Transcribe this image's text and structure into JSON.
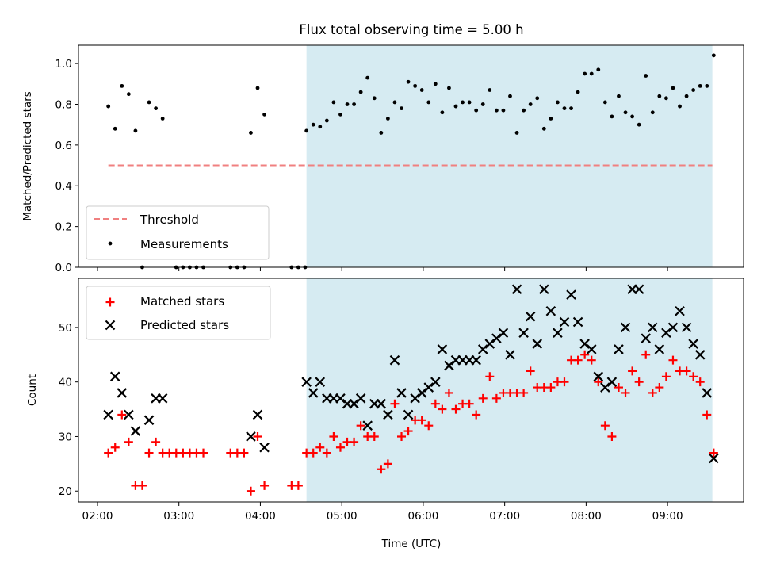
{
  "title": "Flux total observing time = 5.00 h",
  "colors": {
    "shade": "#add8e6",
    "threshold": "#f08080",
    "measurements": "#000000",
    "matched": "#ff0000",
    "predicted": "#000000",
    "axes": "#000000"
  },
  "chart_data": [
    {
      "type": "scatter",
      "ylabel": "Matched/Predicted stars",
      "xlabel": "",
      "ylim": [
        0.0,
        1.09
      ],
      "xlim": [
        "01:46",
        "09:56"
      ],
      "yticks": [
        "0.0",
        "0.2",
        "0.4",
        "0.6",
        "0.8",
        "1.0"
      ],
      "grid": false,
      "legend": {
        "position": "lower-left",
        "entries": [
          "Threshold",
          "Measurements"
        ]
      },
      "shaded_region": {
        "x_start": "04:34",
        "x_end": "09:33"
      },
      "threshold": {
        "name": "Threshold",
        "y": 0.5,
        "x_start": "02:08",
        "x_end": "09:33",
        "style": "dashed"
      },
      "series": [
        {
          "name": "Measurements",
          "marker": "dot",
          "points": [
            [
              "02:08",
              0.79
            ],
            [
              "02:13",
              0.68
            ],
            [
              "02:18",
              0.89
            ],
            [
              "02:23",
              0.85
            ],
            [
              "02:28",
              0.67
            ],
            [
              "02:33",
              0.0
            ],
            [
              "02:38",
              0.81
            ],
            [
              "02:43",
              0.78
            ],
            [
              "02:48",
              0.73
            ],
            [
              "02:58",
              0.0
            ],
            [
              "03:03",
              0.0
            ],
            [
              "03:08",
              0.0
            ],
            [
              "03:13",
              0.0
            ],
            [
              "03:18",
              0.0
            ],
            [
              "03:38",
              0.0
            ],
            [
              "03:43",
              0.0
            ],
            [
              "03:48",
              0.0
            ],
            [
              "03:53",
              0.66
            ],
            [
              "03:58",
              0.88
            ],
            [
              "04:03",
              0.75
            ],
            [
              "04:23",
              0.0
            ],
            [
              "04:28",
              0.0
            ],
            [
              "04:33",
              0.0
            ],
            [
              "04:34",
              0.67
            ],
            [
              "04:39",
              0.7
            ],
            [
              "04:44",
              0.69
            ],
            [
              "04:49",
              0.72
            ],
            [
              "04:54",
              0.81
            ],
            [
              "04:59",
              0.75
            ],
            [
              "05:04",
              0.8
            ],
            [
              "05:09",
              0.8
            ],
            [
              "05:14",
              0.86
            ],
            [
              "05:19",
              0.93
            ],
            [
              "05:24",
              0.83
            ],
            [
              "05:29",
              0.66
            ],
            [
              "05:34",
              0.73
            ],
            [
              "05:39",
              0.81
            ],
            [
              "05:44",
              0.78
            ],
            [
              "05:49",
              0.91
            ],
            [
              "05:54",
              0.89
            ],
            [
              "05:59",
              0.87
            ],
            [
              "06:04",
              0.81
            ],
            [
              "06:09",
              0.9
            ],
            [
              "06:14",
              0.76
            ],
            [
              "06:19",
              0.88
            ],
            [
              "06:24",
              0.79
            ],
            [
              "06:29",
              0.81
            ],
            [
              "06:34",
              0.81
            ],
            [
              "06:39",
              0.77
            ],
            [
              "06:44",
              0.8
            ],
            [
              "06:49",
              0.87
            ],
            [
              "06:54",
              0.77
            ],
            [
              "06:59",
              0.77
            ],
            [
              "07:04",
              0.84
            ],
            [
              "07:09",
              0.66
            ],
            [
              "07:14",
              0.77
            ],
            [
              "07:19",
              0.8
            ],
            [
              "07:24",
              0.83
            ],
            [
              "07:29",
              0.68
            ],
            [
              "07:34",
              0.73
            ],
            [
              "07:39",
              0.81
            ],
            [
              "07:44",
              0.78
            ],
            [
              "07:49",
              0.78
            ],
            [
              "07:54",
              0.86
            ],
            [
              "07:59",
              0.95
            ],
            [
              "08:04",
              0.95
            ],
            [
              "08:09",
              0.97
            ],
            [
              "08:14",
              0.81
            ],
            [
              "08:19",
              0.74
            ],
            [
              "08:24",
              0.84
            ],
            [
              "08:29",
              0.76
            ],
            [
              "08:34",
              0.74
            ],
            [
              "08:39",
              0.7
            ],
            [
              "08:44",
              0.94
            ],
            [
              "08:49",
              0.76
            ],
            [
              "08:54",
              0.84
            ],
            [
              "08:59",
              0.83
            ],
            [
              "09:04",
              0.88
            ],
            [
              "09:09",
              0.79
            ],
            [
              "09:14",
              0.84
            ],
            [
              "09:19",
              0.87
            ],
            [
              "09:24",
              0.89
            ],
            [
              "09:29",
              0.89
            ],
            [
              "09:34",
              1.04
            ]
          ]
        }
      ]
    },
    {
      "type": "scatter",
      "ylabel": "Count",
      "xlabel": "Time (UTC)",
      "ylim": [
        18,
        59
      ],
      "xlim": [
        "01:46",
        "09:56"
      ],
      "yticks": [
        "20",
        "30",
        "40",
        "50"
      ],
      "xticks": [
        "02:00",
        "03:00",
        "04:00",
        "05:00",
        "06:00",
        "07:00",
        "08:00",
        "09:00"
      ],
      "grid": false,
      "legend": {
        "position": "upper-left",
        "entries": [
          "Matched stars",
          "Predicted stars"
        ]
      },
      "shaded_region": {
        "x_start": "04:34",
        "x_end": "09:33"
      },
      "series": [
        {
          "name": "Matched stars",
          "marker": "plus",
          "points": [
            [
              "02:08",
              27
            ],
            [
              "02:13",
              28
            ],
            [
              "02:18",
              34
            ],
            [
              "02:23",
              29
            ],
            [
              "02:28",
              21
            ],
            [
              "02:33",
              21
            ],
            [
              "02:38",
              27
            ],
            [
              "02:43",
              29
            ],
            [
              "02:48",
              27
            ],
            [
              "02:53",
              27
            ],
            [
              "02:58",
              27
            ],
            [
              "03:03",
              27
            ],
            [
              "03:08",
              27
            ],
            [
              "03:13",
              27
            ],
            [
              "03:18",
              27
            ],
            [
              "03:38",
              27
            ],
            [
              "03:43",
              27
            ],
            [
              "03:48",
              27
            ],
            [
              "03:53",
              20
            ],
            [
              "03:58",
              30
            ],
            [
              "04:03",
              21
            ],
            [
              "04:23",
              21
            ],
            [
              "04:28",
              21
            ],
            [
              "04:34",
              27
            ],
            [
              "04:39",
              27
            ],
            [
              "04:44",
              28
            ],
            [
              "04:49",
              27
            ],
            [
              "04:54",
              30
            ],
            [
              "04:59",
              28
            ],
            [
              "05:04",
              29
            ],
            [
              "05:09",
              29
            ],
            [
              "05:14",
              32
            ],
            [
              "05:19",
              30
            ],
            [
              "05:24",
              30
            ],
            [
              "05:29",
              24
            ],
            [
              "05:34",
              25
            ],
            [
              "05:39",
              36
            ],
            [
              "05:44",
              30
            ],
            [
              "05:49",
              31
            ],
            [
              "05:54",
              33
            ],
            [
              "05:59",
              33
            ],
            [
              "06:04",
              32
            ],
            [
              "06:09",
              36
            ],
            [
              "06:14",
              35
            ],
            [
              "06:19",
              38
            ],
            [
              "06:24",
              35
            ],
            [
              "06:29",
              36
            ],
            [
              "06:34",
              36
            ],
            [
              "06:39",
              34
            ],
            [
              "06:44",
              37
            ],
            [
              "06:49",
              41
            ],
            [
              "06:54",
              37
            ],
            [
              "06:59",
              38
            ],
            [
              "07:04",
              38
            ],
            [
              "07:09",
              38
            ],
            [
              "07:14",
              38
            ],
            [
              "07:19",
              42
            ],
            [
              "07:24",
              39
            ],
            [
              "07:29",
              39
            ],
            [
              "07:34",
              39
            ],
            [
              "07:39",
              40
            ],
            [
              "07:44",
              40
            ],
            [
              "07:49",
              44
            ],
            [
              "07:54",
              44
            ],
            [
              "07:59",
              45
            ],
            [
              "08:04",
              44
            ],
            [
              "08:09",
              40
            ],
            [
              "08:14",
              32
            ],
            [
              "08:19",
              30
            ],
            [
              "08:24",
              39
            ],
            [
              "08:29",
              38
            ],
            [
              "08:34",
              42
            ],
            [
              "08:39",
              40
            ],
            [
              "08:44",
              45
            ],
            [
              "08:49",
              38
            ],
            [
              "08:54",
              39
            ],
            [
              "08:59",
              41
            ],
            [
              "09:04",
              44
            ],
            [
              "09:09",
              42
            ],
            [
              "09:14",
              42
            ],
            [
              "09:19",
              41
            ],
            [
              "09:24",
              40
            ],
            [
              "09:29",
              34
            ],
            [
              "09:34",
              27
            ]
          ]
        },
        {
          "name": "Predicted stars",
          "marker": "x",
          "points": [
            [
              "02:08",
              34
            ],
            [
              "02:13",
              41
            ],
            [
              "02:18",
              38
            ],
            [
              "02:23",
              34
            ],
            [
              "02:28",
              31
            ],
            [
              "02:38",
              33
            ],
            [
              "02:43",
              37
            ],
            [
              "02:48",
              37
            ],
            [
              "03:53",
              30
            ],
            [
              "03:58",
              34
            ],
            [
              "04:03",
              28
            ],
            [
              "04:34",
              40
            ],
            [
              "04:39",
              38
            ],
            [
              "04:44",
              40
            ],
            [
              "04:49",
              37
            ],
            [
              "04:54",
              37
            ],
            [
              "04:59",
              37
            ],
            [
              "05:04",
              36
            ],
            [
              "05:09",
              36
            ],
            [
              "05:14",
              37
            ],
            [
              "05:19",
              32
            ],
            [
              "05:24",
              36
            ],
            [
              "05:29",
              36
            ],
            [
              "05:34",
              34
            ],
            [
              "05:39",
              44
            ],
            [
              "05:44",
              38
            ],
            [
              "05:49",
              34
            ],
            [
              "05:54",
              37
            ],
            [
              "05:59",
              38
            ],
            [
              "06:04",
              39
            ],
            [
              "06:09",
              40
            ],
            [
              "06:14",
              46
            ],
            [
              "06:19",
              43
            ],
            [
              "06:24",
              44
            ],
            [
              "06:29",
              44
            ],
            [
              "06:34",
              44
            ],
            [
              "06:39",
              44
            ],
            [
              "06:44",
              46
            ],
            [
              "06:49",
              47
            ],
            [
              "06:54",
              48
            ],
            [
              "06:59",
              49
            ],
            [
              "07:04",
              45
            ],
            [
              "07:09",
              57
            ],
            [
              "07:14",
              49
            ],
            [
              "07:19",
              52
            ],
            [
              "07:24",
              47
            ],
            [
              "07:29",
              57
            ],
            [
              "07:34",
              53
            ],
            [
              "07:39",
              49
            ],
            [
              "07:44",
              51
            ],
            [
              "07:49",
              56
            ],
            [
              "07:54",
              51
            ],
            [
              "07:59",
              47
            ],
            [
              "08:04",
              46
            ],
            [
              "08:09",
              41
            ],
            [
              "08:14",
              39
            ],
            [
              "08:19",
              40
            ],
            [
              "08:24",
              46
            ],
            [
              "08:29",
              50
            ],
            [
              "08:34",
              57
            ],
            [
              "08:39",
              57
            ],
            [
              "08:44",
              48
            ],
            [
              "08:49",
              50
            ],
            [
              "08:54",
              46
            ],
            [
              "08:59",
              49
            ],
            [
              "09:04",
              50
            ],
            [
              "09:09",
              53
            ],
            [
              "09:14",
              50
            ],
            [
              "09:19",
              47
            ],
            [
              "09:24",
              45
            ],
            [
              "09:29",
              38
            ],
            [
              "09:34",
              26
            ]
          ]
        }
      ]
    }
  ]
}
